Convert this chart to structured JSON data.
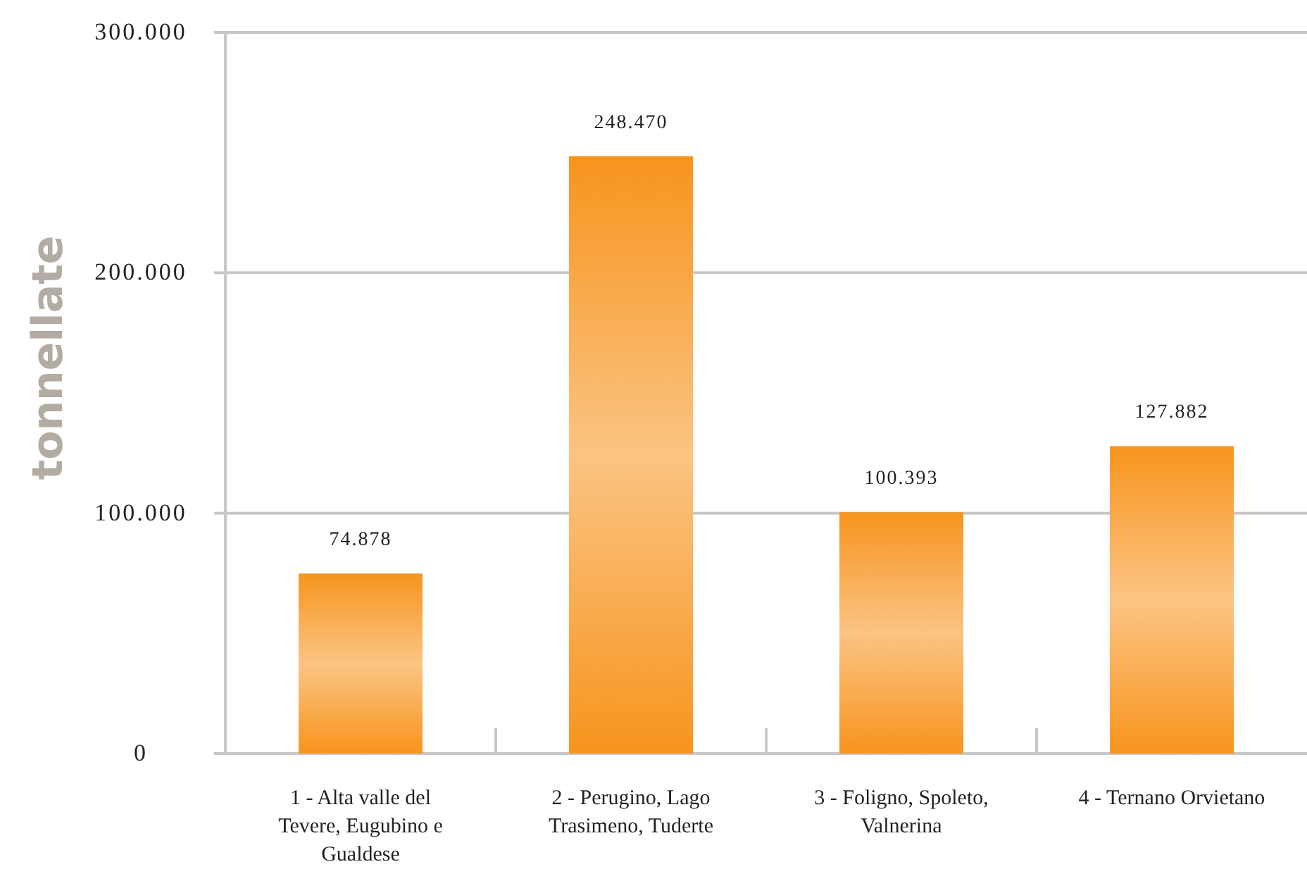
{
  "chart_data": {
    "type": "bar",
    "ylabel": "tonnellate",
    "categories": [
      "1 - Alta valle del Tevere, Eugubino e Gualdese",
      "2 - Perugino, Lago Trasimeno, Tuderte",
      "3 - Foligno, Spoleto, Valnerina",
      "4 - Ternano Orvietano"
    ],
    "values": [
      74878,
      248470,
      100393,
      127882
    ],
    "color": "#f7941d",
    "ylim": [
      0,
      300000
    ],
    "yticks": [
      0,
      {
        "value": 100000,
        "label": "100.000"
      },
      {
        "value": 200000,
        "label": "200.000"
      },
      {
        "value": 300000,
        "label": "300.000"
      }
    ],
    "value_labels": [
      "74.878",
      "248.470",
      "100.393",
      "127.882"
    ],
    "grid": "y"
  }
}
